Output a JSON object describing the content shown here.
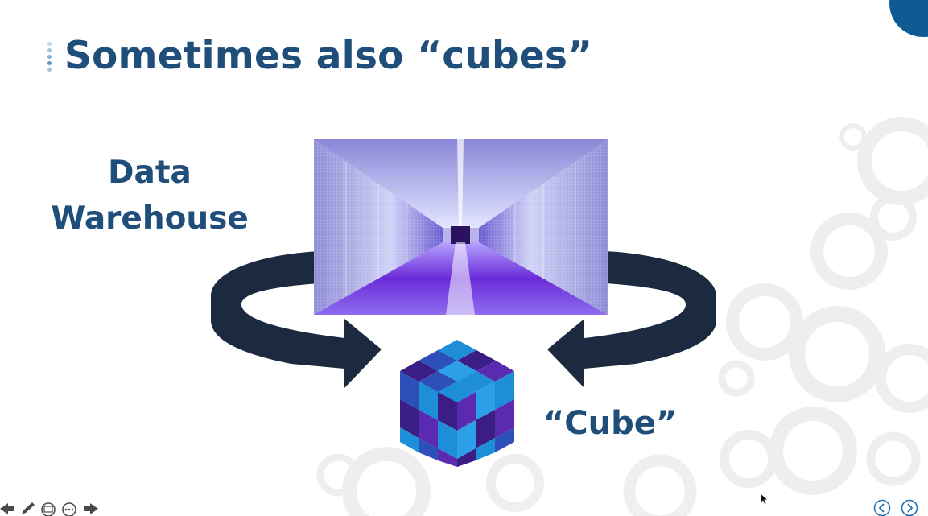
{
  "slide": {
    "title": "Sometimes also “cubes”",
    "data_warehouse_label": [
      "Data",
      "Warehouse"
    ],
    "cube_label": "“Cube”"
  },
  "colors": {
    "title": "#1e4e79",
    "accent_circle": "#0f5a92",
    "arrow": "#1b2a3f",
    "cube_light": "#1f8ed8",
    "cube_mid": "#2d4fb8",
    "cube_dark": "#3a1e86",
    "cube_violet": "#5a2bb0"
  },
  "icons": {
    "presenter_toolbar": [
      "arrow-left-icon",
      "pen-icon",
      "slides-icon",
      "more-icon",
      "arrow-right-icon"
    ],
    "navigation": [
      "previous-slide-icon",
      "next-slide-icon"
    ],
    "pointer": "mouse-cursor-icon"
  }
}
